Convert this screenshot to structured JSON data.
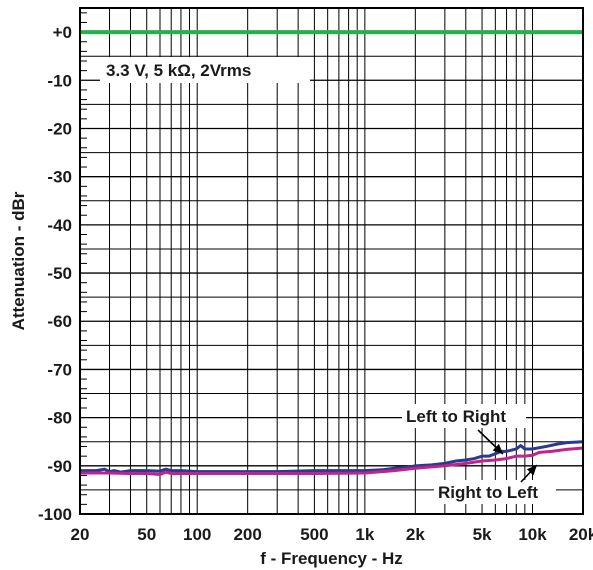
{
  "chart_data": {
    "type": "line",
    "xlabel": "f - Frequency - Hz",
    "ylabel": "Attenuation - dBr",
    "xscale": "log",
    "xlim": [
      20,
      20000
    ],
    "ylim": [
      -100,
      5
    ],
    "grid": true,
    "x_ticks": [
      {
        "value": 20,
        "label": "20"
      },
      {
        "value": 50,
        "label": "50"
      },
      {
        "value": 100,
        "label": "100"
      },
      {
        "value": 200,
        "label": "200"
      },
      {
        "value": 500,
        "label": "500"
      },
      {
        "value": 1000,
        "label": "1k"
      },
      {
        "value": 2000,
        "label": "2k"
      },
      {
        "value": 5000,
        "label": "5k"
      },
      {
        "value": 10000,
        "label": "10k"
      },
      {
        "value": 20000,
        "label": "20k"
      }
    ],
    "y_ticks": [
      {
        "value": 0,
        "label": "+0"
      },
      {
        "value": -10,
        "label": "-10"
      },
      {
        "value": -20,
        "label": "-20"
      },
      {
        "value": -30,
        "label": "-30"
      },
      {
        "value": -40,
        "label": "-40"
      },
      {
        "value": -50,
        "label": "-50"
      },
      {
        "value": -60,
        "label": "-60"
      },
      {
        "value": -70,
        "label": "-70"
      },
      {
        "value": -80,
        "label": "-80"
      },
      {
        "value": -90,
        "label": "-90"
      },
      {
        "value": -100,
        "label": "-100"
      }
    ],
    "annotations": {
      "condition": "3.3 V, 5 kΩ, 2Vrms",
      "left_to_right": "Left to Right",
      "right_to_left": "Right to Left"
    },
    "colors": {
      "reference": "#22b14c",
      "left_to_right": "#2b3990",
      "right_to_left": "#c0248c",
      "grid": "#000000"
    },
    "series": [
      {
        "key": "reference",
        "values": [
          [
            20,
            0
          ],
          [
            20000,
            0
          ]
        ]
      },
      {
        "key": "left_to_right",
        "values": [
          [
            20,
            -91
          ],
          [
            25,
            -91
          ],
          [
            28,
            -90.7
          ],
          [
            30,
            -91.2
          ],
          [
            32,
            -91
          ],
          [
            35,
            -91.3
          ],
          [
            40,
            -91
          ],
          [
            50,
            -91
          ],
          [
            60,
            -91.1
          ],
          [
            65,
            -90.7
          ],
          [
            70,
            -91
          ],
          [
            80,
            -91
          ],
          [
            100,
            -91.2
          ],
          [
            150,
            -91.2
          ],
          [
            200,
            -91.2
          ],
          [
            300,
            -91.2
          ],
          [
            500,
            -91
          ],
          [
            700,
            -91
          ],
          [
            1000,
            -91
          ],
          [
            1300,
            -90.8
          ],
          [
            1500,
            -90.5
          ],
          [
            1800,
            -90.3
          ],
          [
            2000,
            -90
          ],
          [
            2500,
            -89.8
          ],
          [
            3000,
            -89.5
          ],
          [
            3500,
            -89
          ],
          [
            4000,
            -88.8
          ],
          [
            4500,
            -88.5
          ],
          [
            5000,
            -88
          ],
          [
            5500,
            -88
          ],
          [
            6000,
            -87.5
          ],
          [
            6500,
            -87
          ],
          [
            7000,
            -87
          ],
          [
            8000,
            -86.5
          ],
          [
            8500,
            -85.8
          ],
          [
            9000,
            -86.5
          ],
          [
            10000,
            -86.5
          ],
          [
            12000,
            -86
          ],
          [
            14000,
            -85.5
          ],
          [
            16000,
            -85.2
          ],
          [
            20000,
            -85
          ]
        ]
      },
      {
        "key": "right_to_left",
        "values": [
          [
            20,
            -91.5
          ],
          [
            30,
            -91.5
          ],
          [
            40,
            -91.6
          ],
          [
            50,
            -91.6
          ],
          [
            60,
            -91.8
          ],
          [
            65,
            -91.3
          ],
          [
            70,
            -91.6
          ],
          [
            100,
            -91.6
          ],
          [
            200,
            -91.6
          ],
          [
            500,
            -91.6
          ],
          [
            1000,
            -91.5
          ],
          [
            1500,
            -91
          ],
          [
            2000,
            -90.5
          ],
          [
            3000,
            -90
          ],
          [
            4000,
            -89.5
          ],
          [
            5000,
            -89
          ],
          [
            6000,
            -88.8
          ],
          [
            7000,
            -88.5
          ],
          [
            8000,
            -88
          ],
          [
            9000,
            -88
          ],
          [
            10000,
            -87.8
          ],
          [
            11000,
            -87.2
          ],
          [
            13000,
            -87
          ],
          [
            16000,
            -86.6
          ],
          [
            20000,
            -86.3
          ]
        ]
      }
    ]
  }
}
